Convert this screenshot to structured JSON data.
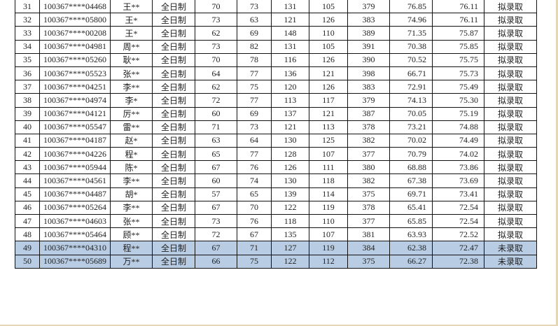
{
  "highlight_color": "#b8cce4",
  "rows": [
    [
      "31",
      "100367****04468",
      "王**",
      "全日制",
      "70",
      "73",
      "131",
      "105",
      "379",
      "76.85",
      "76.11",
      "拟录取"
    ],
    [
      "32",
      "100367****05800",
      "王*",
      "全日制",
      "73",
      "63",
      "121",
      "126",
      "383",
      "74.96",
      "76.11",
      "拟录取"
    ],
    [
      "33",
      "100367****00208",
      "王*",
      "全日制",
      "62",
      "69",
      "148",
      "110",
      "389",
      "71.35",
      "75.87",
      "拟录取"
    ],
    [
      "34",
      "100367****04981",
      "周**",
      "全日制",
      "73",
      "82",
      "131",
      "105",
      "391",
      "70.38",
      "75.85",
      "拟录取"
    ],
    [
      "35",
      "100367****05260",
      "耿**",
      "全日制",
      "70",
      "78",
      "116",
      "126",
      "390",
      "70.52",
      "75.75",
      "拟录取"
    ],
    [
      "36",
      "100367****05523",
      "张**",
      "全日制",
      "64",
      "77",
      "136",
      "121",
      "398",
      "66.71",
      "75.73",
      "拟录取"
    ],
    [
      "37",
      "100367****04251",
      "李**",
      "全日制",
      "62",
      "75",
      "120",
      "126",
      "383",
      "72.91",
      "75.49",
      "拟录取"
    ],
    [
      "38",
      "100367****04974",
      "李*",
      "全日制",
      "72",
      "77",
      "113",
      "117",
      "379",
      "74.13",
      "75.30",
      "拟录取"
    ],
    [
      "39",
      "100367****04121",
      "厉**",
      "全日制",
      "60",
      "69",
      "137",
      "121",
      "387",
      "70.05",
      "75.19",
      "拟录取"
    ],
    [
      "40",
      "100367****05547",
      "雷**",
      "全日制",
      "71",
      "73",
      "121",
      "113",
      "378",
      "73.21",
      "74.88",
      "拟录取"
    ],
    [
      "41",
      "100367****04187",
      "赵*",
      "全日制",
      "63",
      "64",
      "130",
      "125",
      "382",
      "70.02",
      "74.49",
      "拟录取"
    ],
    [
      "42",
      "100367****04226",
      "程*",
      "全日制",
      "65",
      "77",
      "128",
      "107",
      "377",
      "70.79",
      "74.02",
      "拟录取"
    ],
    [
      "43",
      "100367****05944",
      "陈*",
      "全日制",
      "67",
      "76",
      "126",
      "111",
      "380",
      "68.88",
      "73.86",
      "拟录取"
    ],
    [
      "44",
      "100367****04561",
      "李**",
      "全日制",
      "60",
      "74",
      "130",
      "118",
      "382",
      "67.38",
      "73.69",
      "拟录取"
    ],
    [
      "45",
      "100367****04487",
      "胡*",
      "全日制",
      "57",
      "65",
      "139",
      "114",
      "375",
      "69.71",
      "73.41",
      "拟录取"
    ],
    [
      "46",
      "100367****05264",
      "李**",
      "全日制",
      "67",
      "70",
      "122",
      "119",
      "378",
      "65.41",
      "72.54",
      "拟录取"
    ],
    [
      "47",
      "100367****04603",
      "张**",
      "全日制",
      "73",
      "76",
      "118",
      "110",
      "377",
      "65.85",
      "72.54",
      "拟录取"
    ],
    [
      "48",
      "100367****05464",
      "顾**",
      "全日制",
      "72",
      "67",
      "135",
      "107",
      "381",
      "63.93",
      "72.52",
      "拟录取"
    ],
    [
      "49",
      "100367****04310",
      "程**",
      "全日制",
      "67",
      "71",
      "127",
      "119",
      "384",
      "62.38",
      "72.47",
      "未录取"
    ],
    [
      "50",
      "100367****05689",
      "万**",
      "全日制",
      "66",
      "75",
      "122",
      "112",
      "375",
      "66.27",
      "72.38",
      "未录取"
    ]
  ],
  "highlighted_rows": [
    18,
    19
  ]
}
